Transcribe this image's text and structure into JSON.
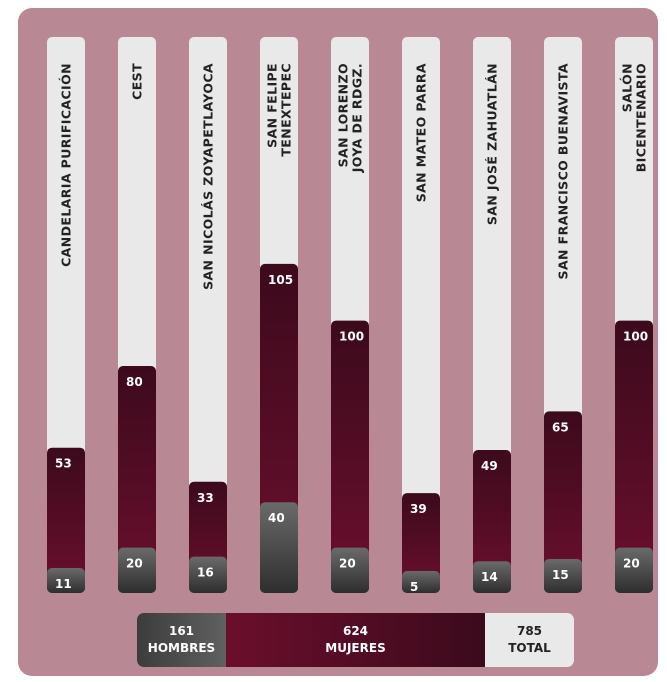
{
  "chart_data": {
    "type": "bar",
    "stacked": true,
    "categories": [
      "CANDELARIA PURIFICACIÓN",
      "CEST",
      "SAN NICOLÁS ZOYAPETLAYOCA",
      "SAN FELIPE TENEXTEPEC",
      "SAN LORENZO JOYA DE RDGZ.",
      "SAN MATEO PARRA",
      "SAN JOSÉ ZAHUATLÁN",
      "SAN FRANCISCO BUENAVISTA",
      "SALÓN BICENTENARIO"
    ],
    "category_lines": [
      [
        "CANDELARIA PURIFICACIÓN"
      ],
      [
        "CEST"
      ],
      [
        "SAN NICOLÁS ZOYAPETLAYOCA"
      ],
      [
        "SAN FELIPE",
        "TENEXTEPEC"
      ],
      [
        "SAN LORENZO",
        "JOYA DE RDGZ."
      ],
      [
        "SAN MATEO PARRA"
      ],
      [
        "SAN JOSÉ ZAHUATLÁN"
      ],
      [
        "SAN FRANCISCO BUENAVISTA"
      ],
      [
        "SALÓN",
        "BICENTENARIO"
      ]
    ],
    "series": [
      {
        "name": "HOMBRES",
        "values": [
          11,
          20,
          16,
          40,
          20,
          5,
          14,
          15,
          20
        ],
        "color": "#4a4a4a"
      },
      {
        "name": "MUJERES",
        "values": [
          53,
          80,
          33,
          105,
          100,
          39,
          49,
          65,
          100
        ],
        "color": "#5e0d27"
      }
    ],
    "bar_background": "#e9e9e9",
    "background": "#b98895"
  },
  "summary": {
    "hombres": {
      "value": "161",
      "label": "HOMBRES"
    },
    "mujeres": {
      "value": "624",
      "label": "MUJERES"
    },
    "total": {
      "value": "785",
      "label": "TOTAL"
    }
  }
}
